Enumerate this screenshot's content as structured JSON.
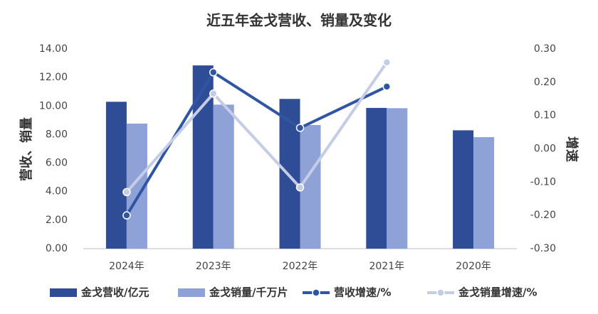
{
  "chart_data": {
    "type": "bar-line",
    "title": "近五年金戈营收、销量及变化",
    "y_label": "营收、销量",
    "y2_label": "增速",
    "categories": [
      "2024年",
      "2023年",
      "2022年",
      "2021年",
      "2020年"
    ],
    "series": [
      {
        "name": "金戈营收/亿元",
        "type": "bar",
        "color": "#2f4d96",
        "values": [
          10.3,
          12.85,
          10.5,
          9.87,
          8.3
        ]
      },
      {
        "name": "金戈销量/千万片",
        "type": "bar",
        "color": "#8ea2d8",
        "values": [
          8.77,
          10.1,
          8.67,
          9.85,
          7.82
        ]
      },
      {
        "name": "营收增速/%",
        "type": "line",
        "axis": "y2",
        "color": "#2f55a4",
        "values": [
          -0.2,
          0.23,
          0.063,
          0.187,
          null
        ]
      },
      {
        "name": "金戈销量增速/%",
        "type": "line",
        "axis": "y2",
        "color": "#c5cde6",
        "values": [
          -0.13,
          0.166,
          -0.116,
          0.26,
          null
        ]
      }
    ],
    "ylim": [
      0,
      14
    ],
    "yticks": [
      {
        "value": 0,
        "label": "0.00"
      },
      {
        "value": 2,
        "label": "2.00"
      },
      {
        "value": 4,
        "label": "4.00"
      },
      {
        "value": 6,
        "label": "6.00"
      },
      {
        "value": 8,
        "label": "8.00"
      },
      {
        "value": 10,
        "label": "10.00"
      },
      {
        "value": 12,
        "label": "12.00"
      },
      {
        "value": 14,
        "label": "14.00"
      }
    ],
    "y2lim": [
      -0.3,
      0.3
    ],
    "y2ticks": [
      {
        "value": -0.3,
        "label": "-0.30"
      },
      {
        "value": -0.2,
        "label": "-0.20"
      },
      {
        "value": -0.1,
        "label": "-0.10"
      },
      {
        "value": 0,
        "label": "0.00"
      },
      {
        "value": 0.1,
        "label": "0.10"
      },
      {
        "value": 0.2,
        "label": "0.20"
      },
      {
        "value": 0.3,
        "label": "0.30"
      }
    ],
    "legend": "bottom"
  }
}
